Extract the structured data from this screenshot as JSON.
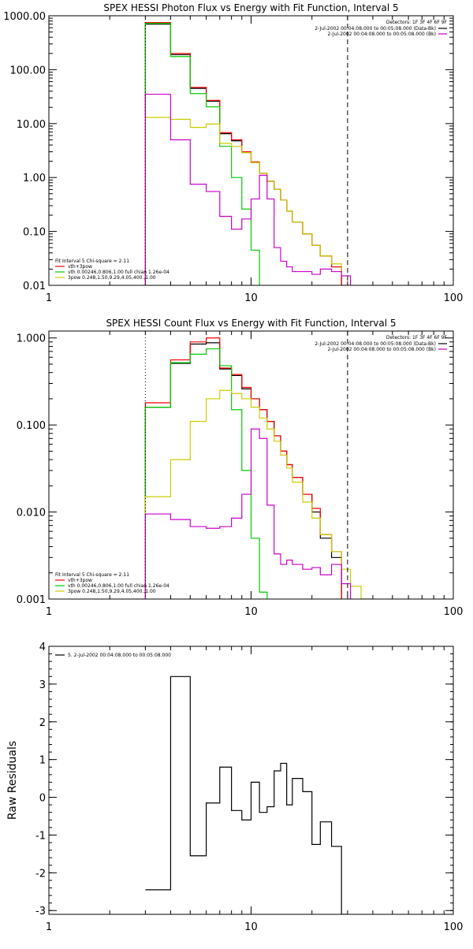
{
  "chart_data": [
    {
      "type": "line",
      "step": true,
      "title": "SPEX HESSI Photon Flux vs Energy with Fit Function, Interval 5",
      "xlabel": "",
      "ylabel": "",
      "xscale": "log",
      "yscale": "log",
      "xlim": [
        1,
        100
      ],
      "ylim": [
        0.01,
        1000
      ],
      "x_ticks": [
        1,
        10,
        100
      ],
      "x_tick_labels": [
        "1",
        "10",
        "100"
      ],
      "y_ticks": [
        0.01,
        0.1,
        1,
        10,
        100,
        1000
      ],
      "y_tick_labels": [
        "0.01",
        "0.10",
        "1.00",
        "10.00",
        "100.00",
        "1000.00"
      ],
      "bin_edges": [
        3,
        4,
        5,
        6,
        7,
        8,
        9,
        10,
        11,
        12,
        13,
        14,
        15,
        16,
        18,
        20,
        22,
        25,
        28,
        31,
        35,
        40
      ],
      "vlines": [
        {
          "x": 3,
          "style": "dotted",
          "color": "#000000"
        },
        {
          "x": 30,
          "style": "dashed",
          "color": "#000000"
        }
      ],
      "legend_top": {
        "position": "top-right",
        "header": "Detectors: 1F 3F 4F 6F 9F",
        "entries": [
          {
            "label": "2-Jul-2002 00:04:08.000 to 00:05:08.000 (Data-Bk)",
            "color": "#000000"
          },
          {
            "label": "2-Jul-2002 00:04:08.000 to 00:05:08.000 (Bk)",
            "color": "#cc00cc"
          }
        ]
      },
      "legend_bottom": {
        "position": "bottom-left",
        "header": "Fit Interval 5   Chi-square = 2.11",
        "entries": [
          {
            "label": "vth+3pow",
            "color": "#ff0000"
          },
          {
            "label": "vth 0.00246,0.806,1.00  full chian 1.26e-04",
            "color": "#00cc00"
          },
          {
            "label": "3pow 0.248,1.50,9.29,4.05,400.,1.00",
            "color": "#cccc00"
          }
        ]
      },
      "series": [
        {
          "name": "Data-Bk",
          "color": "#000000",
          "values": [
            700,
            190,
            45,
            26,
            6.5,
            4.8,
            2.9,
            1.9,
            1.2,
            0.85,
            0.6,
            0.38,
            0.24,
            0.15,
            0.09,
            0.055,
            0.035,
            0.022,
            null,
            null,
            null
          ]
        },
        {
          "name": "vth+3pow",
          "color": "#ff0000",
          "values": [
            750,
            200,
            47,
            27,
            6.8,
            5.0,
            3.0,
            1.95,
            1.2,
            0.85,
            0.6,
            0.38,
            0.24,
            0.15,
            0.09,
            0.055,
            0.035,
            0.022,
            null,
            null,
            null
          ]
        },
        {
          "name": "vth",
          "color": "#00cc00",
          "values": [
            720,
            175,
            36,
            20.5,
            3.8,
            1.0,
            0.26,
            0.045,
            0.006,
            null,
            null,
            null,
            null,
            null,
            null,
            null,
            null,
            null,
            null,
            null,
            null
          ]
        },
        {
          "name": "3pow",
          "color": "#cccc00",
          "values": [
            13,
            12,
            8.5,
            9.8,
            4.3,
            3.8,
            2.9,
            1.9,
            1.2,
            0.85,
            0.6,
            0.38,
            0.24,
            0.15,
            0.09,
            0.055,
            0.035,
            0.025,
            0.015,
            0.009,
            0.005
          ]
        },
        {
          "name": "Bk",
          "color": "#cc00cc",
          "values": [
            35,
            5.0,
            0.75,
            0.55,
            0.19,
            0.11,
            0.17,
            0.4,
            1.1,
            0.4,
            0.05,
            0.028,
            0.022,
            0.018,
            0.018,
            0.016,
            0.02,
            0.018,
            0.015,
            null,
            null
          ]
        }
      ]
    },
    {
      "type": "line",
      "step": true,
      "title": "SPEX HESSI Count Flux vs Energy with Fit Function, Interval 5",
      "xlabel": "",
      "ylabel": "",
      "xscale": "log",
      "yscale": "log",
      "xlim": [
        1,
        100
      ],
      "ylim": [
        0.001,
        1.2
      ],
      "x_ticks": [
        1,
        10,
        100
      ],
      "x_tick_labels": [
        "1",
        "10",
        "100"
      ],
      "y_ticks": [
        0.001,
        0.01,
        0.1,
        1
      ],
      "y_tick_labels": [
        "0.001",
        "0.010",
        "0.100",
        "1.000"
      ],
      "bin_edges": [
        3,
        4,
        5,
        6,
        7,
        8,
        9,
        10,
        11,
        12,
        13,
        14,
        15,
        16,
        18,
        20,
        22,
        25,
        28,
        31,
        35,
        40
      ],
      "vlines": [
        {
          "x": 3,
          "style": "dotted",
          "color": "#000000"
        },
        {
          "x": 30,
          "style": "dashed",
          "color": "#000000"
        }
      ],
      "legend_top": {
        "position": "top-right",
        "header": "Detectors: 1F 3F 4F 6F 9F",
        "entries": [
          {
            "label": "2-Jul-2002 00:04:08.000 to 00:05:08.000 (Data-Bk)",
            "color": "#000000"
          },
          {
            "label": "2-Jul-2002 00:04:08.000 to 00:05:08.000 (Bk)",
            "color": "#cc00cc"
          }
        ]
      },
      "legend_bottom": {
        "position": "bottom-left",
        "header": "Fit Interval 5   Chi-square = 2.11",
        "entries": [
          {
            "label": "vth+3pow",
            "color": "#ff0000"
          },
          {
            "label": "vth 0.00246,0.806,1.00  full chian 1.26e-04",
            "color": "#00cc00"
          },
          {
            "label": "3pow 0.248,1.50,9.29,4.05,400.,1.00",
            "color": "#cccc00"
          }
        ]
      },
      "series": [
        {
          "name": "Data-Bk",
          "color": "#000000",
          "values": [
            0.16,
            0.51,
            0.85,
            0.88,
            0.44,
            0.37,
            0.26,
            0.2,
            0.15,
            0.11,
            0.075,
            0.05,
            0.035,
            0.025,
            0.016,
            0.01,
            0.005,
            0.003,
            null,
            null,
            null
          ]
        },
        {
          "name": "vth+3pow",
          "color": "#ff0000",
          "values": [
            0.18,
            0.56,
            0.9,
            1.0,
            0.45,
            0.38,
            0.27,
            0.2,
            0.15,
            0.11,
            0.075,
            0.05,
            0.035,
            0.025,
            0.016,
            0.011,
            0.0055,
            0.0035,
            null,
            null,
            null
          ]
        },
        {
          "name": "vth",
          "color": "#00cc00",
          "values": [
            0.16,
            0.52,
            0.65,
            0.75,
            0.48,
            0.15,
            0.03,
            0.005,
            0.0012,
            null,
            null,
            null,
            null,
            null,
            null,
            null,
            null,
            null,
            null,
            null,
            null
          ]
        },
        {
          "name": "3pow",
          "color": "#cccc00",
          "values": [
            0.015,
            0.04,
            0.11,
            0.2,
            0.25,
            0.23,
            0.2,
            0.16,
            0.12,
            0.09,
            0.065,
            0.045,
            0.032,
            0.022,
            0.013,
            0.0085,
            0.0055,
            0.0035,
            0.0022,
            0.0014,
            0.001
          ]
        },
        {
          "name": "Bk",
          "color": "#cc00cc",
          "values": [
            0.0095,
            0.0082,
            0.0068,
            0.0065,
            0.0068,
            0.0085,
            0.016,
            0.09,
            0.07,
            0.012,
            0.0033,
            0.0025,
            0.0028,
            0.0025,
            0.0022,
            0.0023,
            0.0019,
            0.0025,
            0.0015,
            null,
            null
          ]
        }
      ]
    },
    {
      "type": "line",
      "step": true,
      "title": "",
      "xlabel": "",
      "ylabel": "Raw Residuals",
      "xscale": "log",
      "yscale": "linear",
      "xlim": [
        1,
        100
      ],
      "ylim": [
        -3.1,
        4
      ],
      "x_ticks": [
        1,
        10,
        100
      ],
      "x_tick_labels": [
        "1",
        "10",
        "100"
      ],
      "y_ticks": [
        -3,
        -2,
        -1,
        0,
        1,
        2,
        3,
        4
      ],
      "y_tick_labels": [
        "-3",
        "-2",
        "-1",
        "0",
        "1",
        "2",
        "3",
        "4"
      ],
      "bin_edges": [
        3,
        4,
        5,
        6,
        7,
        8,
        9,
        10,
        11,
        12,
        13,
        14,
        15,
        16,
        18,
        20,
        22,
        25,
        28,
        30
      ],
      "legend_top": {
        "position": "top-left",
        "header": "",
        "entries": [
          {
            "label": "5. 2-Jul-2002 00:04:08.000 to 00:05:08.000",
            "color": "#000000"
          }
        ]
      },
      "series": [
        {
          "name": "5. 2-Jul-2002 00:04:08.000 to 00:05:08.000",
          "color": "#000000",
          "values": [
            -2.45,
            3.2,
            -1.55,
            -0.15,
            0.8,
            -0.35,
            -0.6,
            0.4,
            -0.4,
            -0.25,
            0.7,
            0.9,
            -0.2,
            0.5,
            0.15,
            -1.25,
            -0.65,
            -1.3,
            -3.1
          ]
        }
      ]
    }
  ]
}
